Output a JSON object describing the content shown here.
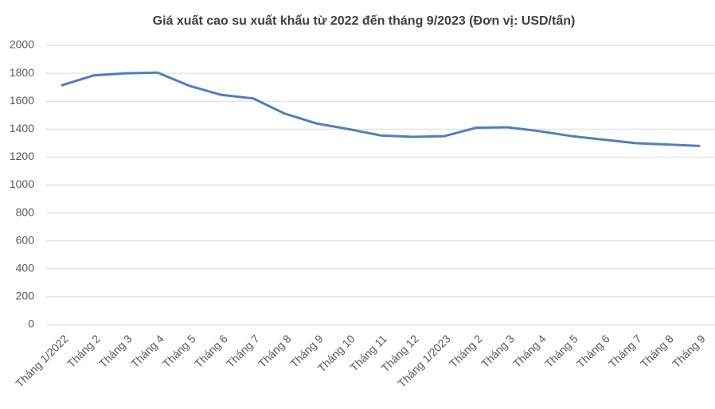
{
  "chart_data": {
    "type": "line",
    "title": "Giá xuất cao su xuất khẩu từ 2022 đến tháng 9/2023 (Đơn vị: USD/tấn)",
    "categories": [
      "Tháng 1/2022",
      "Tháng 2",
      "Tháng 3",
      "Tháng 4",
      "Tháng 5",
      "Tháng 6",
      "Tháng 7",
      "Tháng 8",
      "Tháng 9",
      "Tháng 10",
      "Tháng 11",
      "Tháng 12",
      "Tháng 1/2023",
      "Tháng 2",
      "Tháng 3",
      "Tháng 4",
      "Tháng 5",
      "Tháng 6",
      "Tháng 7",
      "Tháng 8",
      "Tháng 9"
    ],
    "series": [
      {
        "color": "#4f7fbf",
        "values": [
          1715,
          1785,
          1800,
          1805,
          1710,
          1645,
          1620,
          1510,
          1440,
          1400,
          1355,
          1345,
          1350,
          1410,
          1413,
          1385,
          1350,
          1325,
          1300,
          1290,
          1280
        ]
      }
    ],
    "ylim": [
      0,
      2000
    ],
    "yticks": [
      0,
      200,
      400,
      600,
      800,
      1000,
      1200,
      1400,
      1600,
      1800,
      2000
    ],
    "grid": true
  }
}
